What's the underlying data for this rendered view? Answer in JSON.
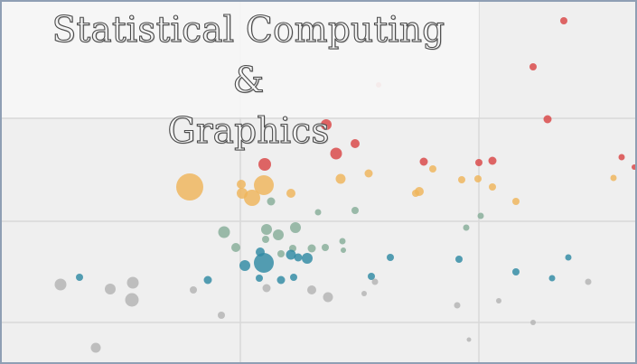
{
  "title": {
    "line1": "Statistical Computing &",
    "line2": "Graphics"
  },
  "colors": {
    "background": "#efefef",
    "grid": "#d9d9d9",
    "border": "#8f9fb4",
    "series": {
      "red": "#d94545",
      "orange": "#efb45a",
      "sage": "#86ad99",
      "teal": "#2f8aa3",
      "gray": "#b5b5b5"
    }
  }
}
